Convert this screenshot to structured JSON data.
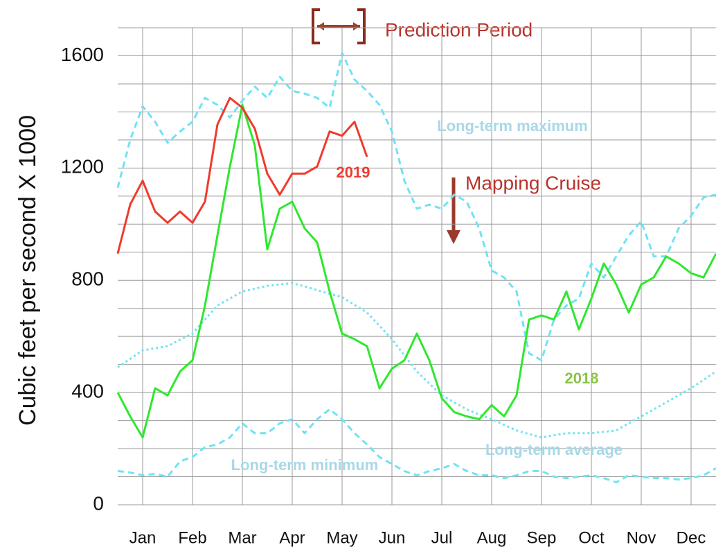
{
  "chart_data": {
    "type": "line",
    "y_label": "Cubic feet per second X 1000",
    "annotations": [
      "Prediction Period",
      "Mapping Cruise"
    ],
    "x": [
      0,
      0.25,
      0.5,
      0.75,
      1,
      1.25,
      1.5,
      1.75,
      2,
      2.25,
      2.5,
      2.75,
      3,
      3.25,
      3.5,
      3.75,
      4,
      4.25,
      4.5,
      4.75,
      5,
      5.25,
      5.5,
      5.75,
      6,
      6.25,
      6.5,
      6.75,
      7,
      7.25,
      7.5,
      7.75,
      8,
      8.25,
      8.5,
      8.75,
      9,
      9.25,
      9.5,
      9.75,
      10,
      10.25,
      10.5,
      10.75,
      11,
      11.25,
      11.5,
      11.75,
      12
    ],
    "xlim": [
      0,
      12
    ],
    "xticks": [
      {
        "value": 0.5,
        "label": "Jan"
      },
      {
        "value": 1.5,
        "label": "Feb"
      },
      {
        "value": 2.5,
        "label": "Mar"
      },
      {
        "value": 3.5,
        "label": "Apr"
      },
      {
        "value": 4.5,
        "label": "May"
      },
      {
        "value": 5.5,
        "label": "Jun"
      },
      {
        "value": 6.5,
        "label": "Jul"
      },
      {
        "value": 7.5,
        "label": "Aug"
      },
      {
        "value": 8.5,
        "label": "Sep"
      },
      {
        "value": 9.5,
        "label": "Oct"
      },
      {
        "value": 10.5,
        "label": "Nov"
      },
      {
        "value": 11.5,
        "label": "Dec"
      }
    ],
    "ylim": [
      0,
      1700
    ],
    "yticks": [
      0,
      400,
      800,
      1200,
      1600
    ],
    "y_minor_ticks": [
      100,
      200,
      300,
      500,
      600,
      700,
      900,
      1000,
      1100,
      1300,
      1400,
      1500,
      1700
    ],
    "grid": true,
    "series": [
      {
        "name": "Long-term maximum",
        "color": "#6fe3f3",
        "label_color": "#a8d8e8",
        "style": "dashed",
        "values": [
          1130,
          1300,
          1420,
          1365,
          1290,
          1330,
          1365,
          1450,
          1425,
          1380,
          1440,
          1490,
          1450,
          1525,
          1475,
          1465,
          1450,
          1415,
          1610,
          1515,
          1475,
          1425,
          1330,
          1155,
          1055,
          1070,
          1055,
          1105,
          1080,
          985,
          835,
          810,
          760,
          540,
          515,
          660,
          710,
          735,
          860,
          810,
          885,
          960,
          1010,
          885,
          885,
          985,
          1030,
          1095,
          1105
        ]
      },
      {
        "name": "Long-term average",
        "color": "#6fe3f3",
        "label_color": "#a8d8e8",
        "style": "dotted",
        "values": [
          490,
          520,
          550,
          558,
          565,
          588,
          610,
          660,
          710,
          735,
          760,
          770,
          780,
          785,
          790,
          778,
          765,
          752,
          740,
          712,
          685,
          638,
          590,
          532,
          475,
          432,
          390,
          365,
          340,
          322,
          305,
          285,
          265,
          252,
          240,
          248,
          255,
          255,
          255,
          260,
          265,
          290,
          315,
          340,
          365,
          390,
          415,
          445,
          475
        ]
      },
      {
        "name": "Long-term minimum",
        "color": "#6fe3f3",
        "label_color": "#a8d8e8",
        "style": "dashed",
        "values": [
          120,
          115,
          105,
          110,
          100,
          155,
          170,
          205,
          215,
          240,
          290,
          255,
          255,
          290,
          305,
          255,
          305,
          340,
          305,
          255,
          215,
          170,
          145,
          120,
          105,
          120,
          130,
          145,
          120,
          105,
          105,
          95,
          105,
          120,
          120,
          100,
          95,
          100,
          105,
          95,
          80,
          105,
          100,
          95,
          95,
          90,
          95,
          105,
          130
        ]
      },
      {
        "name": "2018",
        "color": "#2ee82e",
        "label_color": "#8bc34a",
        "style": "solid",
        "values": [
          400,
          315,
          240,
          415,
          390,
          475,
          515,
          710,
          960,
          1205,
          1425,
          1280,
          910,
          1055,
          1080,
          985,
          935,
          760,
          610,
          590,
          565,
          415,
          485,
          515,
          610,
          515,
          380,
          330,
          315,
          305,
          355,
          315,
          390,
          660,
          675,
          660,
          760,
          625,
          735,
          860,
          785,
          685,
          785,
          810,
          885,
          860,
          825,
          810,
          895
        ]
      },
      {
        "name": "2019",
        "color": "#f03a2e",
        "label_color": "#f03a2e",
        "style": "solid",
        "values": [
          895,
          1070,
          1155,
          1045,
          1005,
          1045,
          1005,
          1080,
          1355,
          1450,
          1415,
          1340,
          1180,
          1105,
          1180,
          1180,
          1205,
          1330,
          1315,
          1365,
          1240,
          null,
          null,
          null,
          null,
          null,
          null,
          null,
          null,
          null,
          null,
          null,
          null,
          null,
          null,
          null,
          null,
          null,
          null,
          null,
          null,
          null,
          null,
          null,
          null,
          null,
          null,
          null,
          null
        ]
      }
    ]
  }
}
